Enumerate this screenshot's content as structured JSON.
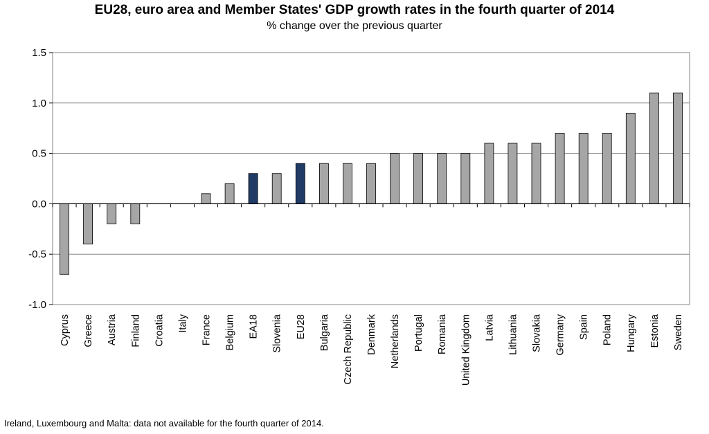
{
  "title": "EU28, euro area and Member States' GDP growth rates in the fourth quarter of 2014",
  "subtitle": "% change over the previous quarter",
  "footnote": "Ireland, Luxembourg and Malta: data not available for the fourth quarter of 2014.",
  "colors": {
    "member_state_bar": "#a6a6a6",
    "aggregate_bar": "#1f3b66",
    "bar_outline": "#000000",
    "gridline": "#868686",
    "plot_border": "#868686"
  },
  "chart_data": {
    "type": "bar",
    "title": "EU28, euro area and Member States' GDP growth rates in the fourth quarter of 2014",
    "subtitle": "% change over the previous quarter",
    "xlabel": "",
    "ylabel": "",
    "ylim": [
      -1.0,
      1.5
    ],
    "yticks": [
      1.5,
      1.0,
      0.5,
      0.0,
      -0.5,
      -1.0
    ],
    "ytick_labels": [
      "1.5",
      "1.0",
      "0.5",
      "0.0",
      "-0.5",
      "-1.0"
    ],
    "grid": true,
    "legend": "none",
    "categories": [
      "Cyprus",
      "Greece",
      "Austria",
      "Finland",
      "Croatia",
      "Italy",
      "France",
      "Belgium",
      "EA18",
      "Slovenia",
      "EU28",
      "Bulgaria",
      "Czech Republic",
      "Denmark",
      "Netherlands",
      "Portugal",
      "Romania",
      "United Kingdom",
      "Latvia",
      "Lithuania",
      "Slovakia",
      "Germany",
      "Spain",
      "Poland",
      "Hungary",
      "Estonia",
      "Sweden"
    ],
    "values": [
      -0.7,
      -0.4,
      -0.2,
      -0.2,
      0.0,
      0.0,
      0.1,
      0.2,
      0.3,
      0.3,
      0.4,
      0.4,
      0.4,
      0.4,
      0.5,
      0.5,
      0.5,
      0.5,
      0.6,
      0.6,
      0.6,
      0.7,
      0.7,
      0.7,
      0.9,
      1.1,
      1.1
    ],
    "highlighted": [
      "EA18",
      "EU28"
    ]
  }
}
